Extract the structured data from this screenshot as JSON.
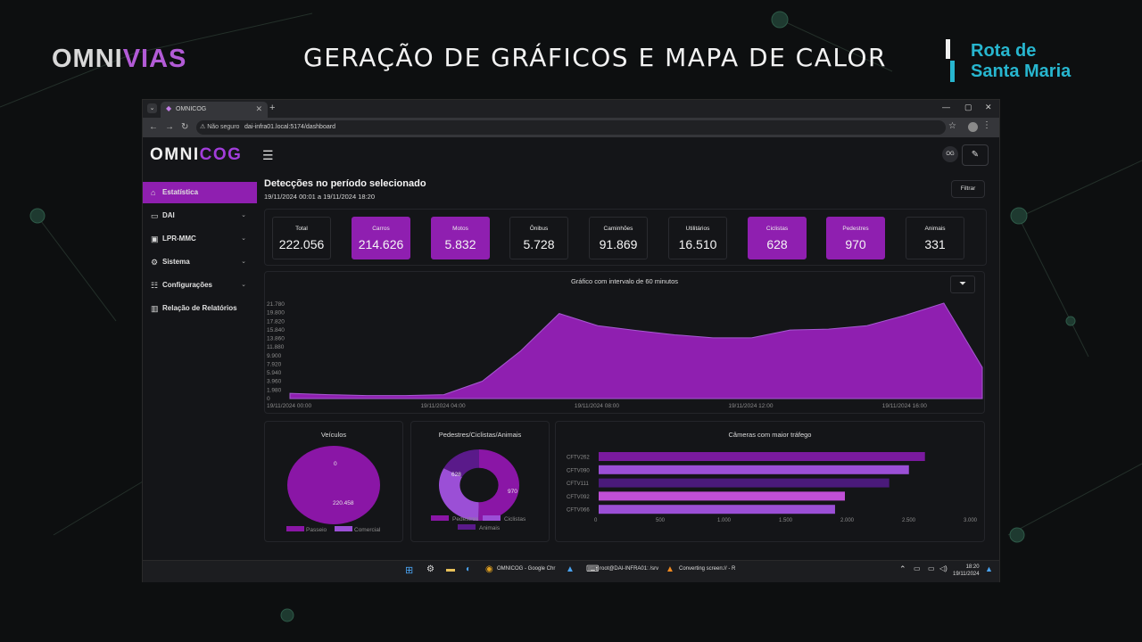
{
  "page": {
    "brand_left": {
      "text_main": "OMNI",
      "text_accent": "VIAS"
    },
    "headline": "GERAÇÃO DE GRÁFICOS E MAPA DE CALOR",
    "brand_right": {
      "line1": "Rota de",
      "line2": "Santa Maria"
    }
  },
  "browser": {
    "tab_title": "OMNICOG",
    "security_label": "Não seguro",
    "url": "dai-infra01.local:5174/dashboard"
  },
  "app": {
    "logo_main": "OMNI",
    "logo_accent": "COG",
    "user_initials": "OG",
    "sidebar": {
      "items": [
        {
          "label": "Estatística",
          "icon": "home-icon",
          "active": true
        },
        {
          "label": "DAI",
          "icon": "video-icon",
          "has_chevron": true
        },
        {
          "label": "LPR-MMC",
          "icon": "car-icon",
          "has_chevron": true
        },
        {
          "label": "Sistema",
          "icon": "gear-icon",
          "has_chevron": true
        },
        {
          "label": "Configurações",
          "icon": "sliders-icon",
          "has_chevron": true
        },
        {
          "label": "Relação de Relatórios",
          "icon": "bar-chart-icon"
        }
      ]
    },
    "main": {
      "title": "Detecções no período selecionado",
      "range": "19/11/2024 00:01 a 19/11/2024 18:20",
      "filter_label": "Filtrar",
      "kpis": [
        {
          "label": "Total",
          "value": "222.056",
          "highlight": false
        },
        {
          "label": "Carros",
          "value": "214.626",
          "highlight": true
        },
        {
          "label": "Motos",
          "value": "5.832",
          "highlight": true
        },
        {
          "label": "Ônibus",
          "value": "5.728",
          "highlight": false
        },
        {
          "label": "Caminhões",
          "value": "91.869",
          "highlight": false
        },
        {
          "label": "Utilitários",
          "value": "16.510",
          "highlight": false
        },
        {
          "label": "Ciclistas",
          "value": "628",
          "highlight": true
        },
        {
          "label": "Pedestres",
          "value": "970",
          "highlight": true
        },
        {
          "label": "Animais",
          "value": "331",
          "highlight": false
        }
      ]
    }
  },
  "chart_data": [
    {
      "type": "area",
      "title": "Gráfico com intervalo de 60 minutos",
      "color": "#8f1fb0",
      "y_ticks": [
        "21.780",
        "19.800",
        "17.820",
        "15.840",
        "13.860",
        "11.880",
        "9.900",
        "7.920",
        "5.940",
        "3.960",
        "1.980",
        "0"
      ],
      "ylim": [
        0,
        21780
      ],
      "x_tick_labels": [
        "19/11/2024 00:00",
        "19/11/2024 04:00",
        "19/11/2024 08:00",
        "19/11/2024 12:00",
        "19/11/2024 16:00"
      ],
      "x_hours": [
        0,
        1,
        2,
        3,
        4,
        5,
        6,
        7,
        8,
        9,
        10,
        11,
        12,
        13,
        14,
        15,
        16,
        17,
        18
      ],
      "values": [
        1200,
        900,
        700,
        700,
        900,
        4000,
        11000,
        19600,
        16800,
        15700,
        14700,
        14000,
        14000,
        15800,
        16000,
        16800,
        19200,
        22000,
        7200
      ]
    },
    {
      "type": "pie",
      "title": "Veículos",
      "labels": [
        "Passeio",
        "Comercial"
      ],
      "values": [
        220458,
        0
      ],
      "colors": [
        "#8a16a6",
        "#9b4fd6"
      ]
    },
    {
      "type": "pie",
      "title": "Pedestres/Ciclistas/Animais",
      "donut": true,
      "labels": [
        "Pedestres",
        "Ciclistas",
        "Animais"
      ],
      "values": [
        970,
        628,
        331
      ],
      "colors": [
        "#8a16a6",
        "#9b4fd6",
        "#5a1a8a"
      ]
    },
    {
      "type": "bar",
      "orientation": "horizontal",
      "title": "Câmeras com maior tráfego",
      "categories": [
        "CFTV262",
        "CFTV090",
        "CFTV111",
        "CFTV092",
        "CFTV066"
      ],
      "values": [
        2650,
        2520,
        2360,
        2000,
        1920
      ],
      "colors": [
        "#7a1a9e",
        "#9b4fd6",
        "#4a1a7a",
        "#c04fd6",
        "#9b4fd6"
      ],
      "x_ticks": [
        "0",
        "500",
        "1.000",
        "1.500",
        "2.000",
        "2.500",
        "3.000"
      ],
      "xlim": [
        0,
        3000
      ]
    }
  ],
  "taskbar": {
    "apps": [
      "OMNICOG - Google Chr",
      "root@DAI-INFRA01: /srv",
      "Converting screen:// - R"
    ],
    "time": "18:20",
    "date": "19/11/2024"
  }
}
